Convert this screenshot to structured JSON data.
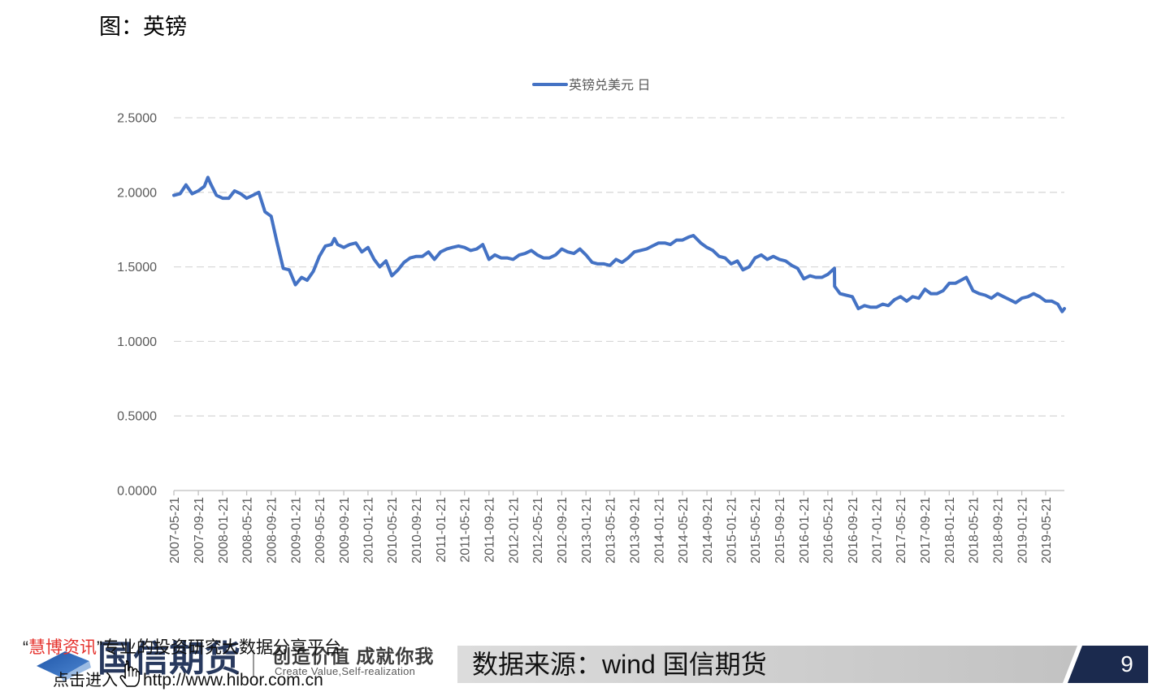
{
  "page": {
    "title": "图：英镑"
  },
  "chart_data": {
    "type": "line",
    "x_scale": "date",
    "legend_position": "top",
    "grid": true,
    "xlim": [
      "2007-05-21",
      "2019-08-23"
    ],
    "ylim": [
      0,
      2.5
    ],
    "yticks": [
      "0.0000",
      "0.5000",
      "1.0000",
      "1.5000",
      "2.0000",
      "2.5000"
    ],
    "xticks": [
      "2007-05-21",
      "2007-09-21",
      "2008-01-21",
      "2008-05-21",
      "2008-09-21",
      "2009-01-21",
      "2009-05-21",
      "2009-09-21",
      "2010-01-21",
      "2010-05-21",
      "2010-09-21",
      "2011-01-21",
      "2011-05-21",
      "2011-09-21",
      "2012-01-21",
      "2012-05-21",
      "2012-09-21",
      "2013-01-21",
      "2013-05-21",
      "2013-09-21",
      "2014-01-21",
      "2014-05-21",
      "2014-09-21",
      "2015-01-21",
      "2015-05-21",
      "2015-09-21",
      "2016-01-21",
      "2016-05-21",
      "2016-09-21",
      "2017-01-21",
      "2017-05-21",
      "2017-09-21",
      "2018-01-21",
      "2018-05-21",
      "2018-09-21",
      "2019-01-21",
      "2019-05-21"
    ],
    "series": [
      {
        "name": "英镑兑美元 日",
        "color": "#4472c4",
        "points": [
          [
            "2007-05-21",
            1.98
          ],
          [
            "2007-06-21",
            1.99
          ],
          [
            "2007-07-21",
            2.05
          ],
          [
            "2007-08-21",
            1.99
          ],
          [
            "2007-09-21",
            2.01
          ],
          [
            "2007-10-21",
            2.04
          ],
          [
            "2007-11-08",
            2.1
          ],
          [
            "2007-11-21",
            2.06
          ],
          [
            "2007-12-21",
            1.98
          ],
          [
            "2008-01-21",
            1.96
          ],
          [
            "2008-02-21",
            1.96
          ],
          [
            "2008-03-21",
            2.01
          ],
          [
            "2008-04-21",
            1.99
          ],
          [
            "2008-05-21",
            1.96
          ],
          [
            "2008-06-21",
            1.98
          ],
          [
            "2008-07-21",
            2.0
          ],
          [
            "2008-08-21",
            1.87
          ],
          [
            "2008-09-21",
            1.84
          ],
          [
            "2008-10-21",
            1.66
          ],
          [
            "2008-11-21",
            1.49
          ],
          [
            "2008-12-21",
            1.48
          ],
          [
            "2009-01-21",
            1.38
          ],
          [
            "2009-02-21",
            1.43
          ],
          [
            "2009-03-21",
            1.41
          ],
          [
            "2009-04-21",
            1.47
          ],
          [
            "2009-05-21",
            1.57
          ],
          [
            "2009-06-21",
            1.64
          ],
          [
            "2009-07-21",
            1.65
          ],
          [
            "2009-08-05",
            1.69
          ],
          [
            "2009-08-21",
            1.65
          ],
          [
            "2009-09-21",
            1.63
          ],
          [
            "2009-10-21",
            1.65
          ],
          [
            "2009-11-21",
            1.66
          ],
          [
            "2009-12-21",
            1.6
          ],
          [
            "2010-01-21",
            1.63
          ],
          [
            "2010-02-21",
            1.55
          ],
          [
            "2010-03-21",
            1.5
          ],
          [
            "2010-04-21",
            1.54
          ],
          [
            "2010-05-21",
            1.44
          ],
          [
            "2010-06-21",
            1.48
          ],
          [
            "2010-07-21",
            1.53
          ],
          [
            "2010-08-21",
            1.56
          ],
          [
            "2010-09-21",
            1.57
          ],
          [
            "2010-10-21",
            1.57
          ],
          [
            "2010-11-21",
            1.6
          ],
          [
            "2010-12-21",
            1.55
          ],
          [
            "2011-01-21",
            1.6
          ],
          [
            "2011-02-21",
            1.62
          ],
          [
            "2011-03-21",
            1.63
          ],
          [
            "2011-04-21",
            1.64
          ],
          [
            "2011-05-21",
            1.63
          ],
          [
            "2011-06-21",
            1.61
          ],
          [
            "2011-07-21",
            1.62
          ],
          [
            "2011-08-21",
            1.65
          ],
          [
            "2011-09-21",
            1.55
          ],
          [
            "2011-10-21",
            1.58
          ],
          [
            "2011-11-21",
            1.56
          ],
          [
            "2011-12-21",
            1.56
          ],
          [
            "2012-01-21",
            1.55
          ],
          [
            "2012-02-21",
            1.58
          ],
          [
            "2012-03-21",
            1.59
          ],
          [
            "2012-04-21",
            1.61
          ],
          [
            "2012-05-21",
            1.58
          ],
          [
            "2012-06-21",
            1.56
          ],
          [
            "2012-07-21",
            1.56
          ],
          [
            "2012-08-21",
            1.58
          ],
          [
            "2012-09-21",
            1.62
          ],
          [
            "2012-10-21",
            1.6
          ],
          [
            "2012-11-21",
            1.59
          ],
          [
            "2012-12-21",
            1.62
          ],
          [
            "2013-01-21",
            1.58
          ],
          [
            "2013-02-21",
            1.53
          ],
          [
            "2013-03-21",
            1.52
          ],
          [
            "2013-04-21",
            1.52
          ],
          [
            "2013-05-21",
            1.51
          ],
          [
            "2013-06-21",
            1.55
          ],
          [
            "2013-07-21",
            1.53
          ],
          [
            "2013-08-21",
            1.56
          ],
          [
            "2013-09-21",
            1.6
          ],
          [
            "2013-10-21",
            1.61
          ],
          [
            "2013-11-21",
            1.62
          ],
          [
            "2013-12-21",
            1.64
          ],
          [
            "2014-01-21",
            1.66
          ],
          [
            "2014-02-21",
            1.66
          ],
          [
            "2014-03-21",
            1.65
          ],
          [
            "2014-04-21",
            1.68
          ],
          [
            "2014-05-21",
            1.68
          ],
          [
            "2014-06-21",
            1.7
          ],
          [
            "2014-07-15",
            1.71
          ],
          [
            "2014-08-21",
            1.66
          ],
          [
            "2014-09-21",
            1.63
          ],
          [
            "2014-10-21",
            1.61
          ],
          [
            "2014-11-21",
            1.57
          ],
          [
            "2014-12-21",
            1.56
          ],
          [
            "2015-01-21",
            1.52
          ],
          [
            "2015-02-21",
            1.54
          ],
          [
            "2015-03-21",
            1.48
          ],
          [
            "2015-04-21",
            1.5
          ],
          [
            "2015-05-21",
            1.56
          ],
          [
            "2015-06-21",
            1.58
          ],
          [
            "2015-07-21",
            1.55
          ],
          [
            "2015-08-21",
            1.57
          ],
          [
            "2015-09-21",
            1.55
          ],
          [
            "2015-10-21",
            1.54
          ],
          [
            "2015-11-21",
            1.51
          ],
          [
            "2015-12-21",
            1.49
          ],
          [
            "2016-01-21",
            1.42
          ],
          [
            "2016-02-21",
            1.44
          ],
          [
            "2016-03-21",
            1.43
          ],
          [
            "2016-04-21",
            1.43
          ],
          [
            "2016-05-21",
            1.45
          ],
          [
            "2016-06-23",
            1.49
          ],
          [
            "2016-06-24",
            1.37
          ],
          [
            "2016-07-21",
            1.32
          ],
          [
            "2016-08-21",
            1.31
          ],
          [
            "2016-09-21",
            1.3
          ],
          [
            "2016-10-21",
            1.22
          ],
          [
            "2016-11-21",
            1.24
          ],
          [
            "2016-12-21",
            1.23
          ],
          [
            "2017-01-21",
            1.23
          ],
          [
            "2017-02-21",
            1.25
          ],
          [
            "2017-03-21",
            1.24
          ],
          [
            "2017-04-21",
            1.28
          ],
          [
            "2017-05-21",
            1.3
          ],
          [
            "2017-06-21",
            1.27
          ],
          [
            "2017-07-21",
            1.3
          ],
          [
            "2017-08-21",
            1.29
          ],
          [
            "2017-09-21",
            1.35
          ],
          [
            "2017-10-21",
            1.32
          ],
          [
            "2017-11-21",
            1.32
          ],
          [
            "2017-12-21",
            1.34
          ],
          [
            "2018-01-21",
            1.39
          ],
          [
            "2018-02-21",
            1.39
          ],
          [
            "2018-03-21",
            1.41
          ],
          [
            "2018-04-17",
            1.43
          ],
          [
            "2018-05-21",
            1.34
          ],
          [
            "2018-06-21",
            1.32
          ],
          [
            "2018-07-21",
            1.31
          ],
          [
            "2018-08-21",
            1.29
          ],
          [
            "2018-09-21",
            1.32
          ],
          [
            "2018-10-21",
            1.3
          ],
          [
            "2018-11-21",
            1.28
          ],
          [
            "2018-12-21",
            1.26
          ],
          [
            "2019-01-21",
            1.29
          ],
          [
            "2019-02-21",
            1.3
          ],
          [
            "2019-03-21",
            1.32
          ],
          [
            "2019-04-21",
            1.3
          ],
          [
            "2019-05-21",
            1.27
          ],
          [
            "2019-06-21",
            1.27
          ],
          [
            "2019-07-21",
            1.25
          ],
          [
            "2019-08-12",
            1.2
          ],
          [
            "2019-08-23",
            1.22
          ]
        ]
      }
    ]
  },
  "footer": {
    "logo": {
      "name": "国信期货",
      "slogan_cn": "创造价值 成就你我",
      "slogan_en": "Create Value,Self-realization"
    },
    "watermark": {
      "quote_open": "“",
      "brand": "慧博资讯",
      "tagline": "”专业的投资研究大数据分享平台",
      "link_prefix": "点击进入",
      "url": "http://www.hibor.com.cn"
    },
    "source_text": "数据来源：wind 国信期货",
    "page_number": "9"
  },
  "icons": {
    "logo": "guosen-logo-icon",
    "cursor": "hand-pointer-icon"
  },
  "colors": {
    "series": "#4472c4",
    "brand_red": "#e5322d",
    "banner_navy": "#1b2a4e",
    "banner_gray": "#cfcfcf"
  }
}
